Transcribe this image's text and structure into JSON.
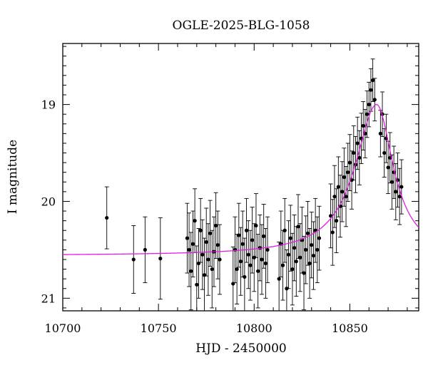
{
  "chart_data": {
    "type": "scatter",
    "title": "OGLE-2025-BLG-1058",
    "xlabel": "HJD - 2450000",
    "ylabel": "I magnitude",
    "xlim": [
      10700,
      10886
    ],
    "ylim": [
      21.13,
      18.37
    ],
    "y_inverted": true,
    "x_ticks": [
      "10700",
      "10750",
      "10800",
      "10850"
    ],
    "y_ticks": [
      "19",
      "20",
      "21"
    ],
    "grid": false,
    "colors": {
      "data": "#000000",
      "model": "#e01ee0"
    },
    "series": [
      {
        "type": "scatter_errorbars",
        "sample_points": [
          [
            10723,
            20.17,
            0.32
          ],
          [
            10737,
            20.6,
            0.35
          ],
          [
            10743,
            20.5,
            0.34
          ],
          [
            10751,
            20.59,
            0.42
          ],
          [
            10765,
            20.38,
            0.36
          ],
          [
            10766,
            20.5,
            0.38
          ],
          [
            10767,
            20.72,
            0.4
          ],
          [
            10768,
            20.44,
            0.34
          ],
          [
            10769,
            20.2,
            0.33
          ],
          [
            10770,
            20.86,
            0.4
          ],
          [
            10771,
            20.64,
            0.36
          ],
          [
            10772,
            20.3,
            0.33
          ],
          [
            10773,
            20.55,
            0.36
          ],
          [
            10774,
            20.76,
            0.38
          ],
          [
            10775,
            20.42,
            0.35
          ],
          [
            10776,
            20.6,
            0.37
          ],
          [
            10777,
            20.33,
            0.34
          ],
          [
            10778,
            20.7,
            0.4
          ],
          [
            10779,
            20.52,
            0.36
          ],
          [
            10780,
            20.25,
            0.34
          ],
          [
            10781,
            20.45,
            0.35
          ],
          [
            10782,
            20.6,
            0.36
          ],
          [
            10789,
            20.85,
            0.38
          ],
          [
            10790,
            20.5,
            0.34
          ],
          [
            10791,
            20.7,
            0.36
          ],
          [
            10792,
            20.35,
            0.33
          ],
          [
            10793,
            20.62,
            0.35
          ],
          [
            10794,
            20.44,
            0.34
          ],
          [
            10795,
            20.78,
            0.4
          ],
          [
            10796,
            20.3,
            0.33
          ],
          [
            10797,
            20.55,
            0.35
          ],
          [
            10798,
            20.66,
            0.36
          ],
          [
            10799,
            20.4,
            0.34
          ],
          [
            10800,
            20.58,
            0.35
          ],
          [
            10801,
            20.25,
            0.33
          ],
          [
            10802,
            20.72,
            0.38
          ],
          [
            10803,
            20.48,
            0.34
          ],
          [
            10804,
            20.6,
            0.36
          ],
          [
            10805,
            20.36,
            0.33
          ],
          [
            10806,
            20.64,
            0.36
          ],
          [
            10807,
            20.5,
            0.34
          ],
          [
            10813,
            20.8,
            0.38
          ],
          [
            10814,
            20.44,
            0.34
          ],
          [
            10815,
            20.66,
            0.36
          ],
          [
            10816,
            20.3,
            0.33
          ],
          [
            10817,
            20.9,
            0.4
          ],
          [
            10818,
            20.55,
            0.35
          ],
          [
            10819,
            20.38,
            0.34
          ],
          [
            10820,
            20.7,
            0.37
          ],
          [
            10821,
            20.48,
            0.34
          ],
          [
            10822,
            20.62,
            0.36
          ],
          [
            10823,
            20.26,
            0.33
          ],
          [
            10824,
            20.58,
            0.35
          ],
          [
            10825,
            20.4,
            0.34
          ],
          [
            10826,
            20.74,
            0.38
          ],
          [
            10827,
            20.5,
            0.35
          ],
          [
            10828,
            20.33,
            0.33
          ],
          [
            10829,
            20.64,
            0.36
          ],
          [
            10830,
            20.45,
            0.34
          ],
          [
            10831,
            20.56,
            0.35
          ],
          [
            10832,
            20.3,
            0.33
          ],
          [
            10833,
            20.5,
            0.34
          ],
          [
            10834,
            20.38,
            0.33
          ],
          [
            10840,
            20.15,
            0.33
          ],
          [
            10841,
            20.32,
            0.34
          ],
          [
            10842,
            19.95,
            0.32
          ],
          [
            10843,
            20.2,
            0.33
          ],
          [
            10844,
            19.85,
            0.31
          ],
          [
            10845,
            20.05,
            0.32
          ],
          [
            10846,
            19.9,
            0.31
          ],
          [
            10847,
            19.75,
            0.3
          ],
          [
            10848,
            19.95,
            0.31
          ],
          [
            10849,
            19.7,
            0.3
          ],
          [
            10850,
            19.6,
            0.29
          ],
          [
            10851,
            19.78,
            0.3
          ],
          [
            10852,
            19.5,
            0.28
          ],
          [
            10853,
            19.62,
            0.29
          ],
          [
            10854,
            19.4,
            0.27
          ],
          [
            10855,
            19.55,
            0.28
          ],
          [
            10856,
            19.35,
            0.26
          ],
          [
            10857,
            19.22,
            0.25
          ],
          [
            10858,
            19.3,
            0.25
          ],
          [
            10859,
            19.1,
            0.24
          ],
          [
            10860,
            19.0,
            0.23
          ],
          [
            10861,
            18.85,
            0.22
          ],
          [
            10862,
            18.75,
            0.22
          ],
          [
            10863,
            18.95,
            0.22
          ],
          [
            10866,
            19.3,
            0.24
          ],
          [
            10867,
            19.1,
            0.23
          ],
          [
            10868,
            19.5,
            0.25
          ],
          [
            10869,
            19.35,
            0.25
          ],
          [
            10870,
            19.65,
            0.27
          ],
          [
            10871,
            19.55,
            0.26
          ],
          [
            10872,
            19.8,
            0.28
          ],
          [
            10873,
            19.7,
            0.27
          ],
          [
            10874,
            19.9,
            0.29
          ],
          [
            10875,
            19.78,
            0.28
          ],
          [
            10876,
            19.95,
            0.29
          ],
          [
            10877,
            19.85,
            0.28
          ]
        ]
      },
      {
        "type": "model_curve",
        "peak_hjd": 10864,
        "peak_mag": 19.0,
        "baseline_mag": 20.56
      }
    ]
  }
}
